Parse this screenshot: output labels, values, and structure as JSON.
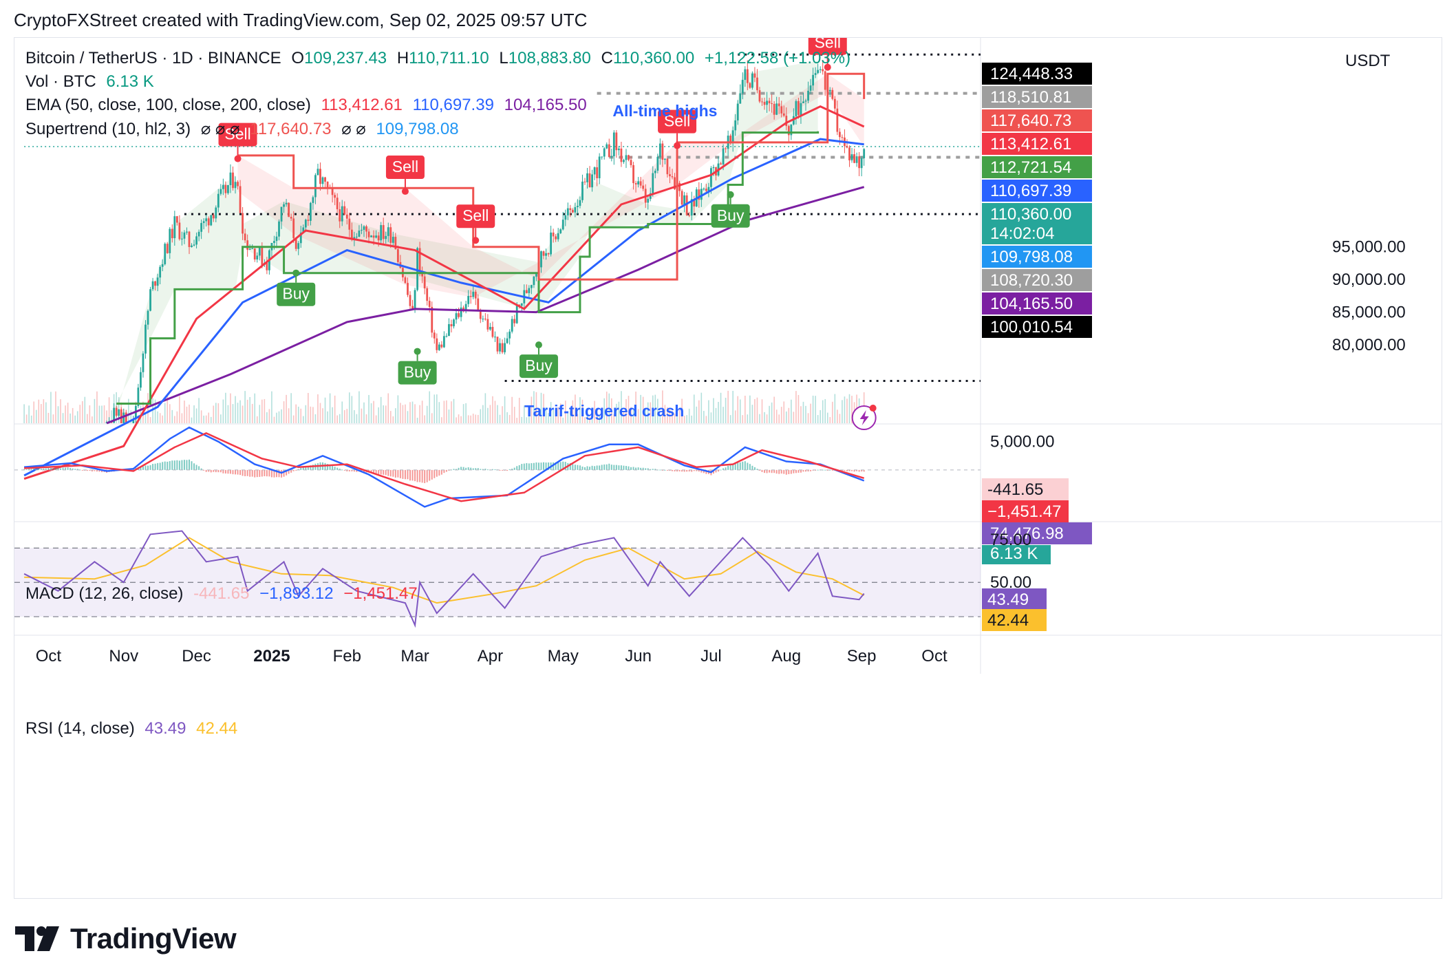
{
  "header": {
    "text": "CryptoFXStreet created with TradingView.com, Sep 02, 2025 09:57 UTC"
  },
  "brand": {
    "name": "TradingView",
    "icon": "tradingview-logo-icon"
  },
  "legend": {
    "symbol": "Bitcoin / TetherUS · 1D · BINANCE",
    "o_label": "O",
    "o": "109,237.43",
    "h_label": "H",
    "h": "110,711.10",
    "l_label": "L",
    "l": "108,883.80",
    "c_label": "C",
    "c": "110,360.00",
    "change": "+1,122.58 (+1.03%)",
    "vol_label": "Vol · BTC",
    "vol": "6.13 K",
    "ema_label": "EMA (50, close, 100, close, 200, close)",
    "ema50": "113,412.61",
    "ema100": "110,697.39",
    "ema200": "104,165.50",
    "st_label": "Supertrend (10, hl2, 3)",
    "st_null": "⌀ ⌀ ⌀",
    "st_up": "117,640.73",
    "st_null2": "⌀ ⌀",
    "st_down": "109,798.08",
    "macd_label": "MACD (12, 26, close)",
    "macd_hist": "-441.65",
    "macd_line": "−1,893.12",
    "macd_signal": "−1,451.47",
    "rsi_label": "RSI (14, close)",
    "rsi": "43.49",
    "rsi_ma": "42.44"
  },
  "currency": "USDT",
  "annotations": {
    "ath": "All-time highs",
    "crash": "Tarrif-triggered crash"
  },
  "colors": {
    "up": "#26a69a",
    "down": "#ef5350",
    "ema50": "#f23645",
    "ema100": "#2962ff",
    "ema200": "#7b1fa2",
    "st_up": "#43a047",
    "st_down": "#f23645",
    "macd": "#2962ff",
    "signal": "#f23645",
    "rsi": "#7e57c2",
    "rsi_ma": "#fbc02d"
  },
  "chart_data": [
    {
      "type": "candlestick",
      "title": "Bitcoin / TetherUS · 1D · BINANCE",
      "x_ticks": [
        "Oct",
        "Nov",
        "Dec",
        "2025",
        "Feb",
        "Mar",
        "Apr",
        "May",
        "Jun",
        "Jul",
        "Aug",
        "Sep",
        "Oct"
      ],
      "y_ticks": [
        80000,
        85000,
        90000,
        95000
      ],
      "ylim": [
        68000,
        127000
      ],
      "price_close_path": [
        {
          "date": "2024-09-21",
          "close": 63000
        },
        {
          "date": "2024-10-10",
          "close": 61000
        },
        {
          "date": "2024-10-28",
          "close": 69500
        },
        {
          "date": "2024-11-05",
          "close": 68000
        },
        {
          "date": "2024-11-12",
          "close": 88000
        },
        {
          "date": "2024-11-22",
          "close": 98500
        },
        {
          "date": "2024-11-28",
          "close": 95500
        },
        {
          "date": "2024-12-05",
          "close": 99000
        },
        {
          "date": "2024-12-17",
          "close": 106000
        },
        {
          "date": "2024-12-21",
          "close": 96000
        },
        {
          "date": "2024-12-30",
          "close": 92500
        },
        {
          "date": "2025-01-06",
          "close": 102000
        },
        {
          "date": "2025-01-12",
          "close": 94500
        },
        {
          "date": "2025-01-20",
          "close": 106000
        },
        {
          "date": "2025-01-26",
          "close": 102000
        },
        {
          "date": "2025-02-03",
          "close": 97500
        },
        {
          "date": "2025-02-20",
          "close": 97000
        },
        {
          "date": "2025-02-28",
          "close": 84500
        },
        {
          "date": "2025-03-02",
          "close": 94000
        },
        {
          "date": "2025-03-10",
          "close": 79000
        },
        {
          "date": "2025-03-24",
          "close": 88000
        },
        {
          "date": "2025-04-06",
          "close": 78500
        },
        {
          "date": "2025-04-09",
          "close": 82500
        },
        {
          "date": "2025-04-22",
          "close": 93500
        },
        {
          "date": "2025-05-08",
          "close": 103000
        },
        {
          "date": "2025-05-22",
          "close": 111000
        },
        {
          "date": "2025-06-05",
          "close": 101500
        },
        {
          "date": "2025-06-10",
          "close": 110000
        },
        {
          "date": "2025-06-22",
          "close": 100500
        },
        {
          "date": "2025-07-09",
          "close": 111000
        },
        {
          "date": "2025-07-14",
          "close": 121500
        },
        {
          "date": "2025-07-25",
          "close": 117500
        },
        {
          "date": "2025-08-02",
          "close": 113000
        },
        {
          "date": "2025-08-14",
          "close": 123500
        },
        {
          "date": "2025-08-25",
          "close": 110000
        },
        {
          "date": "2025-08-31",
          "close": 108000
        },
        {
          "date": "2025-09-02",
          "close": 110360
        }
      ],
      "ema50": [
        {
          "date": "2024-09-21",
          "v": 59500
        },
        {
          "date": "2024-11-01",
          "v": 64500
        },
        {
          "date": "2024-12-01",
          "v": 84000
        },
        {
          "date": "2025-01-15",
          "v": 97500
        },
        {
          "date": "2025-03-01",
          "v": 94500
        },
        {
          "date": "2025-04-15",
          "v": 85500
        },
        {
          "date": "2025-05-25",
          "v": 101500
        },
        {
          "date": "2025-07-01",
          "v": 106000
        },
        {
          "date": "2025-08-01",
          "v": 114000
        },
        {
          "date": "2025-08-15",
          "v": 116500
        },
        {
          "date": "2025-09-02",
          "v": 113412.61
        }
      ],
      "ema100": [
        {
          "date": "2024-09-21",
          "v": 60000
        },
        {
          "date": "2024-11-15",
          "v": 70500
        },
        {
          "date": "2024-12-20",
          "v": 86500
        },
        {
          "date": "2025-02-01",
          "v": 94500
        },
        {
          "date": "2025-03-20",
          "v": 89500
        },
        {
          "date": "2025-04-25",
          "v": 86500
        },
        {
          "date": "2025-06-01",
          "v": 97500
        },
        {
          "date": "2025-07-10",
          "v": 105500
        },
        {
          "date": "2025-08-15",
          "v": 111500
        },
        {
          "date": "2025-09-02",
          "v": 110697.39
        }
      ],
      "ema200": [
        {
          "date": "2024-10-25",
          "v": 68000
        },
        {
          "date": "2024-12-15",
          "v": 75500
        },
        {
          "date": "2025-02-01",
          "v": 83500
        },
        {
          "date": "2025-03-01",
          "v": 85500
        },
        {
          "date": "2025-04-20",
          "v": 85000
        },
        {
          "date": "2025-06-01",
          "v": 91500
        },
        {
          "date": "2025-07-15",
          "v": 99000
        },
        {
          "date": "2025-09-02",
          "v": 104165.5
        }
      ],
      "supertrend_up": [
        {
          "date": "2024-10-29",
          "v": 71000
        },
        {
          "date": "2024-11-12",
          "v": 81000
        },
        {
          "date": "2024-11-22",
          "v": 88500
        },
        {
          "date": "2024-12-17",
          "v": 88500
        },
        {
          "date": "2024-12-20",
          "v": 95000
        },
        {
          "date": "2025-01-06",
          "v": 91000
        },
        {
          "date": "2025-02-20",
          "v": 91000
        },
        {
          "date": "2025-04-21",
          "v": 85000
        },
        {
          "date": "2025-05-08",
          "v": 93500
        },
        {
          "date": "2025-05-12",
          "v": 98000
        },
        {
          "date": "2025-06-05",
          "v": 98500
        },
        {
          "date": "2025-06-22",
          "v": 98500
        },
        {
          "date": "2025-07-08",
          "v": 104500
        },
        {
          "date": "2025-07-14",
          "v": 112500
        },
        {
          "date": "2025-08-14",
          "v": 112700
        }
      ],
      "supertrend_down": [
        {
          "date": "2024-12-18",
          "v": 109000
        },
        {
          "date": "2025-01-10",
          "v": 104000
        },
        {
          "date": "2025-02-25",
          "v": 104000
        },
        {
          "date": "2025-03-25",
          "v": 95000
        },
        {
          "date": "2025-04-21",
          "v": 90000
        },
        {
          "date": "2025-06-17",
          "v": 111000
        },
        {
          "date": "2025-07-08",
          "v": 111000
        },
        {
          "date": "2025-08-18",
          "v": 121500
        },
        {
          "date": "2025-09-02",
          "v": 117640.73
        }
      ],
      "signals": [
        {
          "label": "Sell",
          "date": "2024-12-18",
          "price": 108500
        },
        {
          "label": "Buy",
          "date": "2025-01-11",
          "price": 91000
        },
        {
          "label": "Sell",
          "date": "2025-02-25",
          "price": 103500
        },
        {
          "label": "Buy",
          "date": "2025-03-02",
          "price": 79000
        },
        {
          "label": "Sell",
          "date": "2025-03-26",
          "price": 96000
        },
        {
          "label": "Buy",
          "date": "2025-04-21",
          "price": 80000
        },
        {
          "label": "Sell",
          "date": "2025-06-17",
          "price": 110500
        },
        {
          "label": "Buy",
          "date": "2025-07-09",
          "price": 103000
        },
        {
          "label": "Sell",
          "date": "2025-08-18",
          "price": 122500
        }
      ],
      "levels": [
        {
          "value": 124448.33,
          "style": "dotted",
          "from": "2025-07-12"
        },
        {
          "value": 118510.81,
          "style": "dashed",
          "from": "2025-05-15"
        },
        {
          "value": 110360.0,
          "style": "current",
          "from": "2024-09-21"
        },
        {
          "value": 108720.3,
          "style": "dashed",
          "from": "2025-05-20"
        },
        {
          "value": 100010.54,
          "style": "dotted",
          "from": "2024-11-26"
        },
        {
          "value": 74476.98,
          "style": "dotted",
          "from": "2025-04-07"
        }
      ],
      "price_labels": [
        {
          "text": "124,448.33",
          "bg": "#000000",
          "fg": "#ffffff"
        },
        {
          "text": "118,510.81",
          "bg": "#9e9e9e",
          "fg": "#ffffff"
        },
        {
          "text": "117,640.73",
          "bg": "#ef5350",
          "fg": "#ffffff"
        },
        {
          "text": "113,412.61",
          "bg": "#f23645",
          "fg": "#ffffff"
        },
        {
          "text": "112,721.54",
          "bg": "#43a047",
          "fg": "#ffffff"
        },
        {
          "text": "110,697.39",
          "bg": "#2962ff",
          "fg": "#ffffff"
        },
        {
          "text": "110,360.00",
          "bg": "#26a69a",
          "fg": "#ffffff"
        },
        {
          "text": "14:02:04",
          "bg": "#26a69a",
          "fg": "#ffffff"
        },
        {
          "text": "109,798.08",
          "bg": "#2196f3",
          "fg": "#ffffff"
        },
        {
          "text": "108,720.30",
          "bg": "#9e9e9e",
          "fg": "#ffffff"
        },
        {
          "text": "104,165.50",
          "bg": "#7b1fa2",
          "fg": "#ffffff"
        },
        {
          "text": "100,010.54",
          "bg": "#000000",
          "fg": "#ffffff"
        },
        {
          "text": "74,476.98",
          "bg": "#7e57c2",
          "fg": "#ffffff"
        },
        {
          "text": "6.13 K",
          "bg": "#26a69a",
          "fg": "#ffffff"
        }
      ]
    },
    {
      "type": "line",
      "title": "MACD (12, 26, close)",
      "y_ticks": [
        5000
      ],
      "ylim": [
        -9000,
        8000
      ],
      "macd": [
        {
          "date": "2024-09-21",
          "v": 500
        },
        {
          "date": "2024-10-10",
          "v": 1200
        },
        {
          "date": "2024-10-25",
          "v": -200
        },
        {
          "date": "2024-11-05",
          "v": 200
        },
        {
          "date": "2024-11-20",
          "v": 5500
        },
        {
          "date": "2024-11-28",
          "v": 7500
        },
        {
          "date": "2024-12-10",
          "v": 5000
        },
        {
          "date": "2024-12-25",
          "v": 1000
        },
        {
          "date": "2025-01-05",
          "v": -500
        },
        {
          "date": "2025-01-22",
          "v": 2500
        },
        {
          "date": "2025-02-10",
          "v": -800
        },
        {
          "date": "2025-03-05",
          "v": -6500
        },
        {
          "date": "2025-03-15",
          "v": -5000
        },
        {
          "date": "2025-04-08",
          "v": -4500
        },
        {
          "date": "2025-05-01",
          "v": 2000
        },
        {
          "date": "2025-05-20",
          "v": 4500
        },
        {
          "date": "2025-06-01",
          "v": 4500
        },
        {
          "date": "2025-06-20",
          "v": 800
        },
        {
          "date": "2025-07-01",
          "v": -400
        },
        {
          "date": "2025-07-15",
          "v": 4000
        },
        {
          "date": "2025-08-01",
          "v": 1500
        },
        {
          "date": "2025-08-15",
          "v": 1000
        },
        {
          "date": "2025-09-02",
          "v": -1893.12
        }
      ],
      "signal": [
        {
          "date": "2024-09-21",
          "v": 300
        },
        {
          "date": "2024-10-15",
          "v": 800
        },
        {
          "date": "2024-11-05",
          "v": -200
        },
        {
          "date": "2024-11-22",
          "v": 4000
        },
        {
          "date": "2024-12-05",
          "v": 6500
        },
        {
          "date": "2024-12-28",
          "v": 2000
        },
        {
          "date": "2025-01-12",
          "v": 500
        },
        {
          "date": "2025-02-01",
          "v": 1000
        },
        {
          "date": "2025-02-25",
          "v": -2500
        },
        {
          "date": "2025-03-20",
          "v": -5500
        },
        {
          "date": "2025-04-15",
          "v": -4000
        },
        {
          "date": "2025-05-10",
          "v": 2500
        },
        {
          "date": "2025-06-01",
          "v": 4000
        },
        {
          "date": "2025-06-25",
          "v": 500
        },
        {
          "date": "2025-07-10",
          "v": 1000
        },
        {
          "date": "2025-07-22",
          "v": 3500
        },
        {
          "date": "2025-08-10",
          "v": 1500
        },
        {
          "date": "2025-09-02",
          "v": -1451.47
        }
      ],
      "price_labels": [
        {
          "text": "-441.65",
          "bg": "#fbd0d3",
          "fg": "#131722"
        },
        {
          "text": "−1,451.47",
          "bg": "#f23645",
          "fg": "#ffffff"
        }
      ]
    },
    {
      "type": "line",
      "title": "RSI (14, close)",
      "y_ticks": [
        25,
        50,
        75
      ],
      "ylim": [
        20,
        85
      ],
      "bands": [
        30,
        70
      ],
      "rsi": [
        {
          "date": "2024-09-21",
          "v": 55
        },
        {
          "date": "2024-10-05",
          "v": 45
        },
        {
          "date": "2024-10-20",
          "v": 62
        },
        {
          "date": "2024-11-01",
          "v": 50
        },
        {
          "date": "2024-11-12",
          "v": 78
        },
        {
          "date": "2024-11-25",
          "v": 80
        },
        {
          "date": "2024-12-05",
          "v": 62
        },
        {
          "date": "2024-12-18",
          "v": 65
        },
        {
          "date": "2024-12-22",
          "v": 45
        },
        {
          "date": "2025-01-06",
          "v": 62
        },
        {
          "date": "2025-01-12",
          "v": 42
        },
        {
          "date": "2025-01-22",
          "v": 58
        },
        {
          "date": "2025-02-05",
          "v": 45
        },
        {
          "date": "2025-02-25",
          "v": 38
        },
        {
          "date": "2025-03-01",
          "v": 25
        },
        {
          "date": "2025-03-03",
          "v": 50
        },
        {
          "date": "2025-03-10",
          "v": 32
        },
        {
          "date": "2025-03-25",
          "v": 55
        },
        {
          "date": "2025-04-07",
          "v": 35
        },
        {
          "date": "2025-04-22",
          "v": 65
        },
        {
          "date": "2025-05-08",
          "v": 72
        },
        {
          "date": "2025-05-22",
          "v": 76
        },
        {
          "date": "2025-06-05",
          "v": 48
        },
        {
          "date": "2025-06-10",
          "v": 62
        },
        {
          "date": "2025-06-22",
          "v": 42
        },
        {
          "date": "2025-07-14",
          "v": 76
        },
        {
          "date": "2025-07-25",
          "v": 60
        },
        {
          "date": "2025-08-02",
          "v": 45
        },
        {
          "date": "2025-08-14",
          "v": 67
        },
        {
          "date": "2025-08-20",
          "v": 42
        },
        {
          "date": "2025-08-31",
          "v": 40
        },
        {
          "date": "2025-09-02",
          "v": 43.49
        }
      ],
      "rsi_ma": [
        {
          "date": "2024-09-21",
          "v": 53
        },
        {
          "date": "2024-10-20",
          "v": 52
        },
        {
          "date": "2024-11-10",
          "v": 60
        },
        {
          "date": "2024-11-28",
          "v": 76
        },
        {
          "date": "2024-12-15",
          "v": 62
        },
        {
          "date": "2025-01-05",
          "v": 55
        },
        {
          "date": "2025-01-25",
          "v": 54
        },
        {
          "date": "2025-02-20",
          "v": 47
        },
        {
          "date": "2025-03-10",
          "v": 38
        },
        {
          "date": "2025-04-01",
          "v": 43
        },
        {
          "date": "2025-04-20",
          "v": 48
        },
        {
          "date": "2025-05-10",
          "v": 63
        },
        {
          "date": "2025-05-28",
          "v": 70
        },
        {
          "date": "2025-06-20",
          "v": 52
        },
        {
          "date": "2025-07-05",
          "v": 55
        },
        {
          "date": "2025-07-20",
          "v": 68
        },
        {
          "date": "2025-08-05",
          "v": 56
        },
        {
          "date": "2025-08-20",
          "v": 52
        },
        {
          "date": "2025-09-02",
          "v": 42.44
        }
      ],
      "price_labels": [
        {
          "text": "43.49",
          "bg": "#7e57c2",
          "fg": "#ffffff"
        },
        {
          "text": "42.44",
          "bg": "#fbc02d",
          "fg": "#131722"
        }
      ]
    }
  ]
}
